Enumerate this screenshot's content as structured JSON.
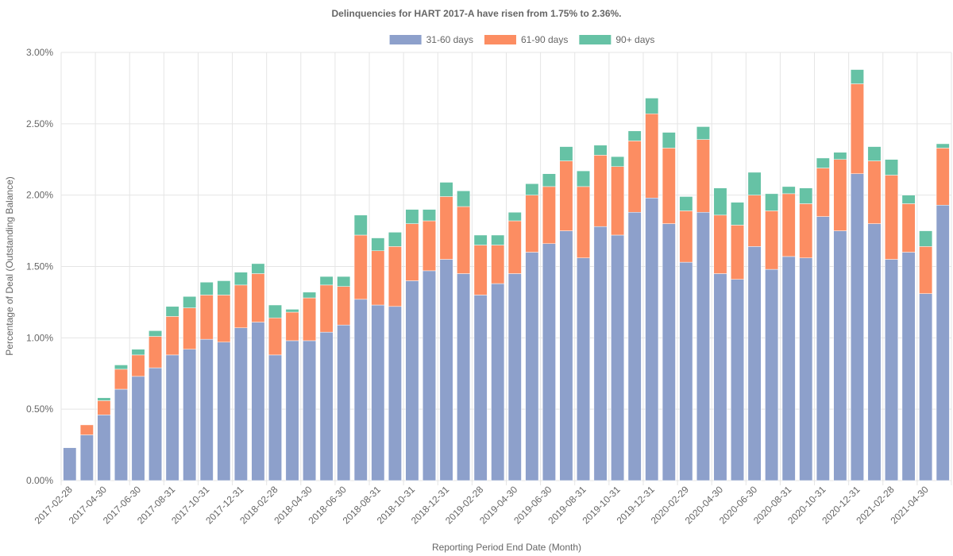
{
  "chart_data": {
    "type": "bar",
    "stacked": true,
    "title": "Delinquencies for HART 2017-A have risen from 1.75% to 2.36%.",
    "x_label": "Reporting Period End Date (Month)",
    "y_label": "Percentage of Deal (Outstanding Balance)",
    "legend": "top",
    "grid": true,
    "categories": [
      "2017-02-28",
      null,
      "2017-04-30",
      null,
      "2017-06-30",
      null,
      "2017-08-31",
      null,
      "2017-10-31",
      null,
      "2017-12-31",
      null,
      "2018-02-28",
      null,
      "2018-04-30",
      null,
      "2018-06-30",
      null,
      "2018-08-31",
      null,
      "2018-10-31",
      null,
      "2018-12-31",
      null,
      "2019-02-28",
      null,
      "2019-04-30",
      null,
      "2019-06-30",
      null,
      "2019-08-31",
      null,
      "2019-10-31",
      null,
      "2019-12-31",
      null,
      "2020-02-29",
      null,
      "2020-04-30",
      null,
      "2020-06-30",
      null,
      "2020-08-31",
      null,
      "2020-10-31",
      null,
      "2020-12-31",
      null,
      "2021-02-28",
      null,
      "2021-04-30",
      null
    ],
    "series": [
      {
        "name": "31-60 days",
        "color": "#8da0cb",
        "values": [
          0.23,
          0.32,
          0.46,
          0.64,
          0.73,
          0.79,
          0.88,
          0.92,
          0.99,
          0.97,
          1.07,
          1.11,
          0.88,
          0.98,
          0.98,
          1.04,
          1.09,
          1.27,
          1.23,
          1.22,
          1.4,
          1.47,
          1.55,
          1.45,
          1.3,
          1.38,
          1.45,
          1.6,
          1.66,
          1.75,
          1.56,
          1.78,
          1.72,
          1.88,
          1.98,
          1.8,
          1.53,
          1.88,
          1.45,
          1.41,
          1.64,
          1.48,
          1.57,
          1.56,
          1.85,
          1.75,
          2.15,
          1.8,
          1.55,
          1.6,
          1.31,
          1.93
        ]
      },
      {
        "name": "61-90 days",
        "color": "#fc8d62",
        "values": [
          0,
          0.07,
          0.1,
          0.14,
          0.15,
          0.22,
          0.27,
          0.29,
          0.31,
          0.33,
          0.3,
          0.34,
          0.26,
          0.2,
          0.3,
          0.33,
          0.27,
          0.45,
          0.38,
          0.42,
          0.4,
          0.35,
          0.44,
          0.47,
          0.35,
          0.27,
          0.37,
          0.4,
          0.4,
          0.49,
          0.5,
          0.5,
          0.48,
          0.5,
          0.59,
          0.53,
          0.36,
          0.51,
          0.41,
          0.38,
          0.36,
          0.41,
          0.44,
          0.38,
          0.34,
          0.5,
          0.63,
          0.44,
          0.59,
          0.34,
          0.33,
          0.4
        ]
      },
      {
        "name": "90+ days",
        "color": "#66c2a5",
        "values": [
          0,
          0,
          0.02,
          0.03,
          0.04,
          0.04,
          0.07,
          0.08,
          0.09,
          0.1,
          0.09,
          0.07,
          0.09,
          0.02,
          0.04,
          0.06,
          0.07,
          0.14,
          0.09,
          0.1,
          0.1,
          0.08,
          0.1,
          0.11,
          0.07,
          0.07,
          0.06,
          0.08,
          0.09,
          0.1,
          0.11,
          0.07,
          0.07,
          0.07,
          0.11,
          0.11,
          0.1,
          0.09,
          0.19,
          0.16,
          0.16,
          0.12,
          0.05,
          0.11,
          0.07,
          0.05,
          0.1,
          0.1,
          0.11,
          0.06,
          0.11,
          0.03
        ]
      }
    ],
    "ylim": [
      0,
      3
    ],
    "yticks": [
      {
        "value": 0,
        "label": "0.00%"
      },
      {
        "value": 0.5,
        "label": "0.50%"
      },
      {
        "value": 1,
        "label": "1.00%"
      },
      {
        "value": 1.5,
        "label": "1.50%"
      },
      {
        "value": 2,
        "label": "2.00%"
      },
      {
        "value": 2.5,
        "label": "2.50%"
      },
      {
        "value": 3,
        "label": "3.00%"
      }
    ]
  }
}
